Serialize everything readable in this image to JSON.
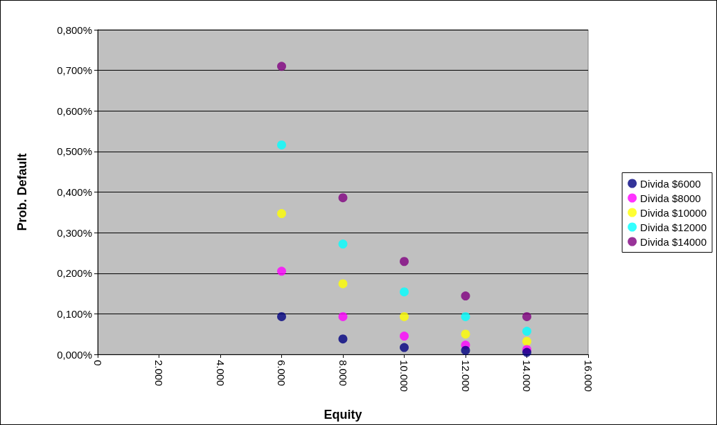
{
  "chart_data": {
    "type": "scatter",
    "xlabel": "Equity",
    "ylabel": "Prob. Default",
    "x": [
      6000,
      8000,
      10000,
      12000,
      14000
    ],
    "series": [
      {
        "name": "Divida $6000",
        "color": "#000080",
        "values": [
          0.093,
          0.038,
          0.017,
          0.01,
          0.005
        ]
      },
      {
        "name": "Divida $8000",
        "color": "#ff00ff",
        "values": [
          0.205,
          0.093,
          0.045,
          0.023,
          0.012
        ]
      },
      {
        "name": "Divida $10000",
        "color": "#ffff00",
        "values": [
          0.347,
          0.174,
          0.093,
          0.05,
          0.032
        ]
      },
      {
        "name": "Divida $12000",
        "color": "#00ffff",
        "values": [
          0.516,
          0.272,
          0.154,
          0.093,
          0.057
        ]
      },
      {
        "name": "Divida $14000",
        "color": "#800080",
        "values": [
          0.71,
          0.386,
          0.229,
          0.144,
          0.093
        ]
      }
    ],
    "xlim": [
      0,
      16000
    ],
    "xticks": [
      {
        "value": 0,
        "label": "0"
      },
      {
        "value": 2000,
        "label": "2.000"
      },
      {
        "value": 4000,
        "label": "4.000"
      },
      {
        "value": 6000,
        "label": "6.000"
      },
      {
        "value": 8000,
        "label": "8.000"
      },
      {
        "value": 10000,
        "label": "10.000"
      },
      {
        "value": 12000,
        "label": "12.000"
      },
      {
        "value": 14000,
        "label": "14.000"
      },
      {
        "value": 16000,
        "label": "16.000"
      }
    ],
    "ylim": [
      0,
      0.8
    ],
    "yticks": [
      {
        "value": 0,
        "label": "0,000%"
      },
      {
        "value": 0.1,
        "label": "0,100%"
      },
      {
        "value": 0.2,
        "label": "0,200%"
      },
      {
        "value": 0.3,
        "label": "0,300%"
      },
      {
        "value": 0.4,
        "label": "0,400%"
      },
      {
        "value": 0.5,
        "label": "0,500%"
      },
      {
        "value": 0.6,
        "label": "0,600%"
      },
      {
        "value": 0.7,
        "label": "0,700%"
      },
      {
        "value": 0.8,
        "label": "0,800%"
      }
    ],
    "grid": "y",
    "legend": "right",
    "marker": "circle"
  }
}
